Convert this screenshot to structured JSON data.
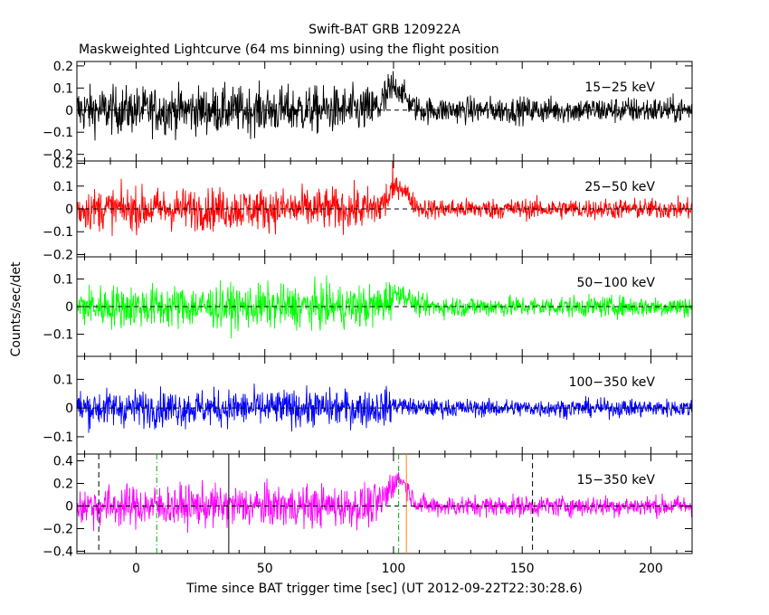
{
  "title": "Swift-BAT GRB 120922A",
  "subtitle": "Maskweighted Lightcurve (64 ms binning) using the flight position",
  "chart_data": {
    "type": "line",
    "title": "Swift-BAT GRB 120922A",
    "subtitle": "Maskweighted Lightcurve (64 ms binning) using the flight position",
    "xlabel": "Time since BAT trigger time [sec] (UT 2012-09-22T22:30:28.6)",
    "ylabel": "Counts/sec/det",
    "xlim": [
      -23,
      216
    ],
    "x_ticks": [
      "0",
      "50",
      "100",
      "150",
      "200"
    ],
    "x_tick_values": [
      0,
      50,
      100,
      150,
      200
    ],
    "grid": false,
    "zero_line": "dashed",
    "panels": [
      {
        "band": "15−25 keV",
        "color": "#000000",
        "ylim": [
          -0.23,
          0.22
        ],
        "y_ticks": [
          -0.2,
          -0.1,
          0,
          0.1,
          0.2
        ],
        "y_tick_labels": [
          "−0.2",
          "−0.1",
          "0",
          "0.1",
          "0.2"
        ],
        "noise_early": 0.075,
        "noise_late": 0.042,
        "pulse": {
          "t": 101,
          "peak": 0.1,
          "width": 5
        }
      },
      {
        "band": "25−50 keV",
        "color": "#ff0000",
        "ylim": [
          -0.21,
          0.21
        ],
        "y_ticks": [
          -0.2,
          -0.1,
          0,
          0.1,
          0.2
        ],
        "y_tick_labels": [
          "−0.2",
          "−0.1",
          "0",
          "0.1",
          "0.2"
        ],
        "noise_early": 0.065,
        "noise_late": 0.032,
        "pulse": {
          "t": 102,
          "peak": 0.1,
          "width": 5
        }
      },
      {
        "band": "50−100 keV",
        "color": "#00ff00",
        "ylim": [
          -0.18,
          0.18
        ],
        "y_ticks": [
          -0.1,
          0,
          0.1
        ],
        "y_tick_labels": [
          "−0.1",
          "0",
          "0.1"
        ],
        "noise_early": 0.055,
        "noise_late": 0.027,
        "pulse": {
          "t": 102,
          "peak": 0.05,
          "width": 5
        }
      },
      {
        "band": "100−350 keV",
        "color": "#0000ff",
        "ylim": [
          -0.16,
          0.18
        ],
        "y_ticks": [
          -0.1,
          0,
          0.1
        ],
        "y_tick_labels": [
          "−0.1",
          "0",
          "0.1"
        ],
        "noise_early": 0.045,
        "noise_late": 0.022,
        "pulse": {
          "t": 102,
          "peak": 0.01,
          "width": 5
        }
      },
      {
        "band": "15−350 keV",
        "color": "#ff00ff",
        "ylim": [
          -0.42,
          0.46
        ],
        "y_ticks": [
          -0.4,
          -0.2,
          0,
          0.2,
          0.4
        ],
        "y_tick_labels": [
          "−0.4",
          "−0.2",
          "0",
          "0.2",
          "0.4"
        ],
        "noise_early": 0.13,
        "noise_late": 0.065,
        "pulse": {
          "t": 102,
          "peak": 0.24,
          "width": 5
        }
      }
    ],
    "vertical_markers": [
      {
        "t": -14.5,
        "style": "dashed",
        "color": "#000000"
      },
      {
        "t": 8,
        "style": "dashdot",
        "color": "#00aa00"
      },
      {
        "t": 36,
        "style": "solid",
        "color": "#000000"
      },
      {
        "t": 102,
        "style": "dashdot",
        "color": "#00aa00"
      },
      {
        "t": 105,
        "style": "solid",
        "color": "#ff8000"
      },
      {
        "t": 154,
        "style": "dashed",
        "color": "#000000"
      }
    ]
  }
}
